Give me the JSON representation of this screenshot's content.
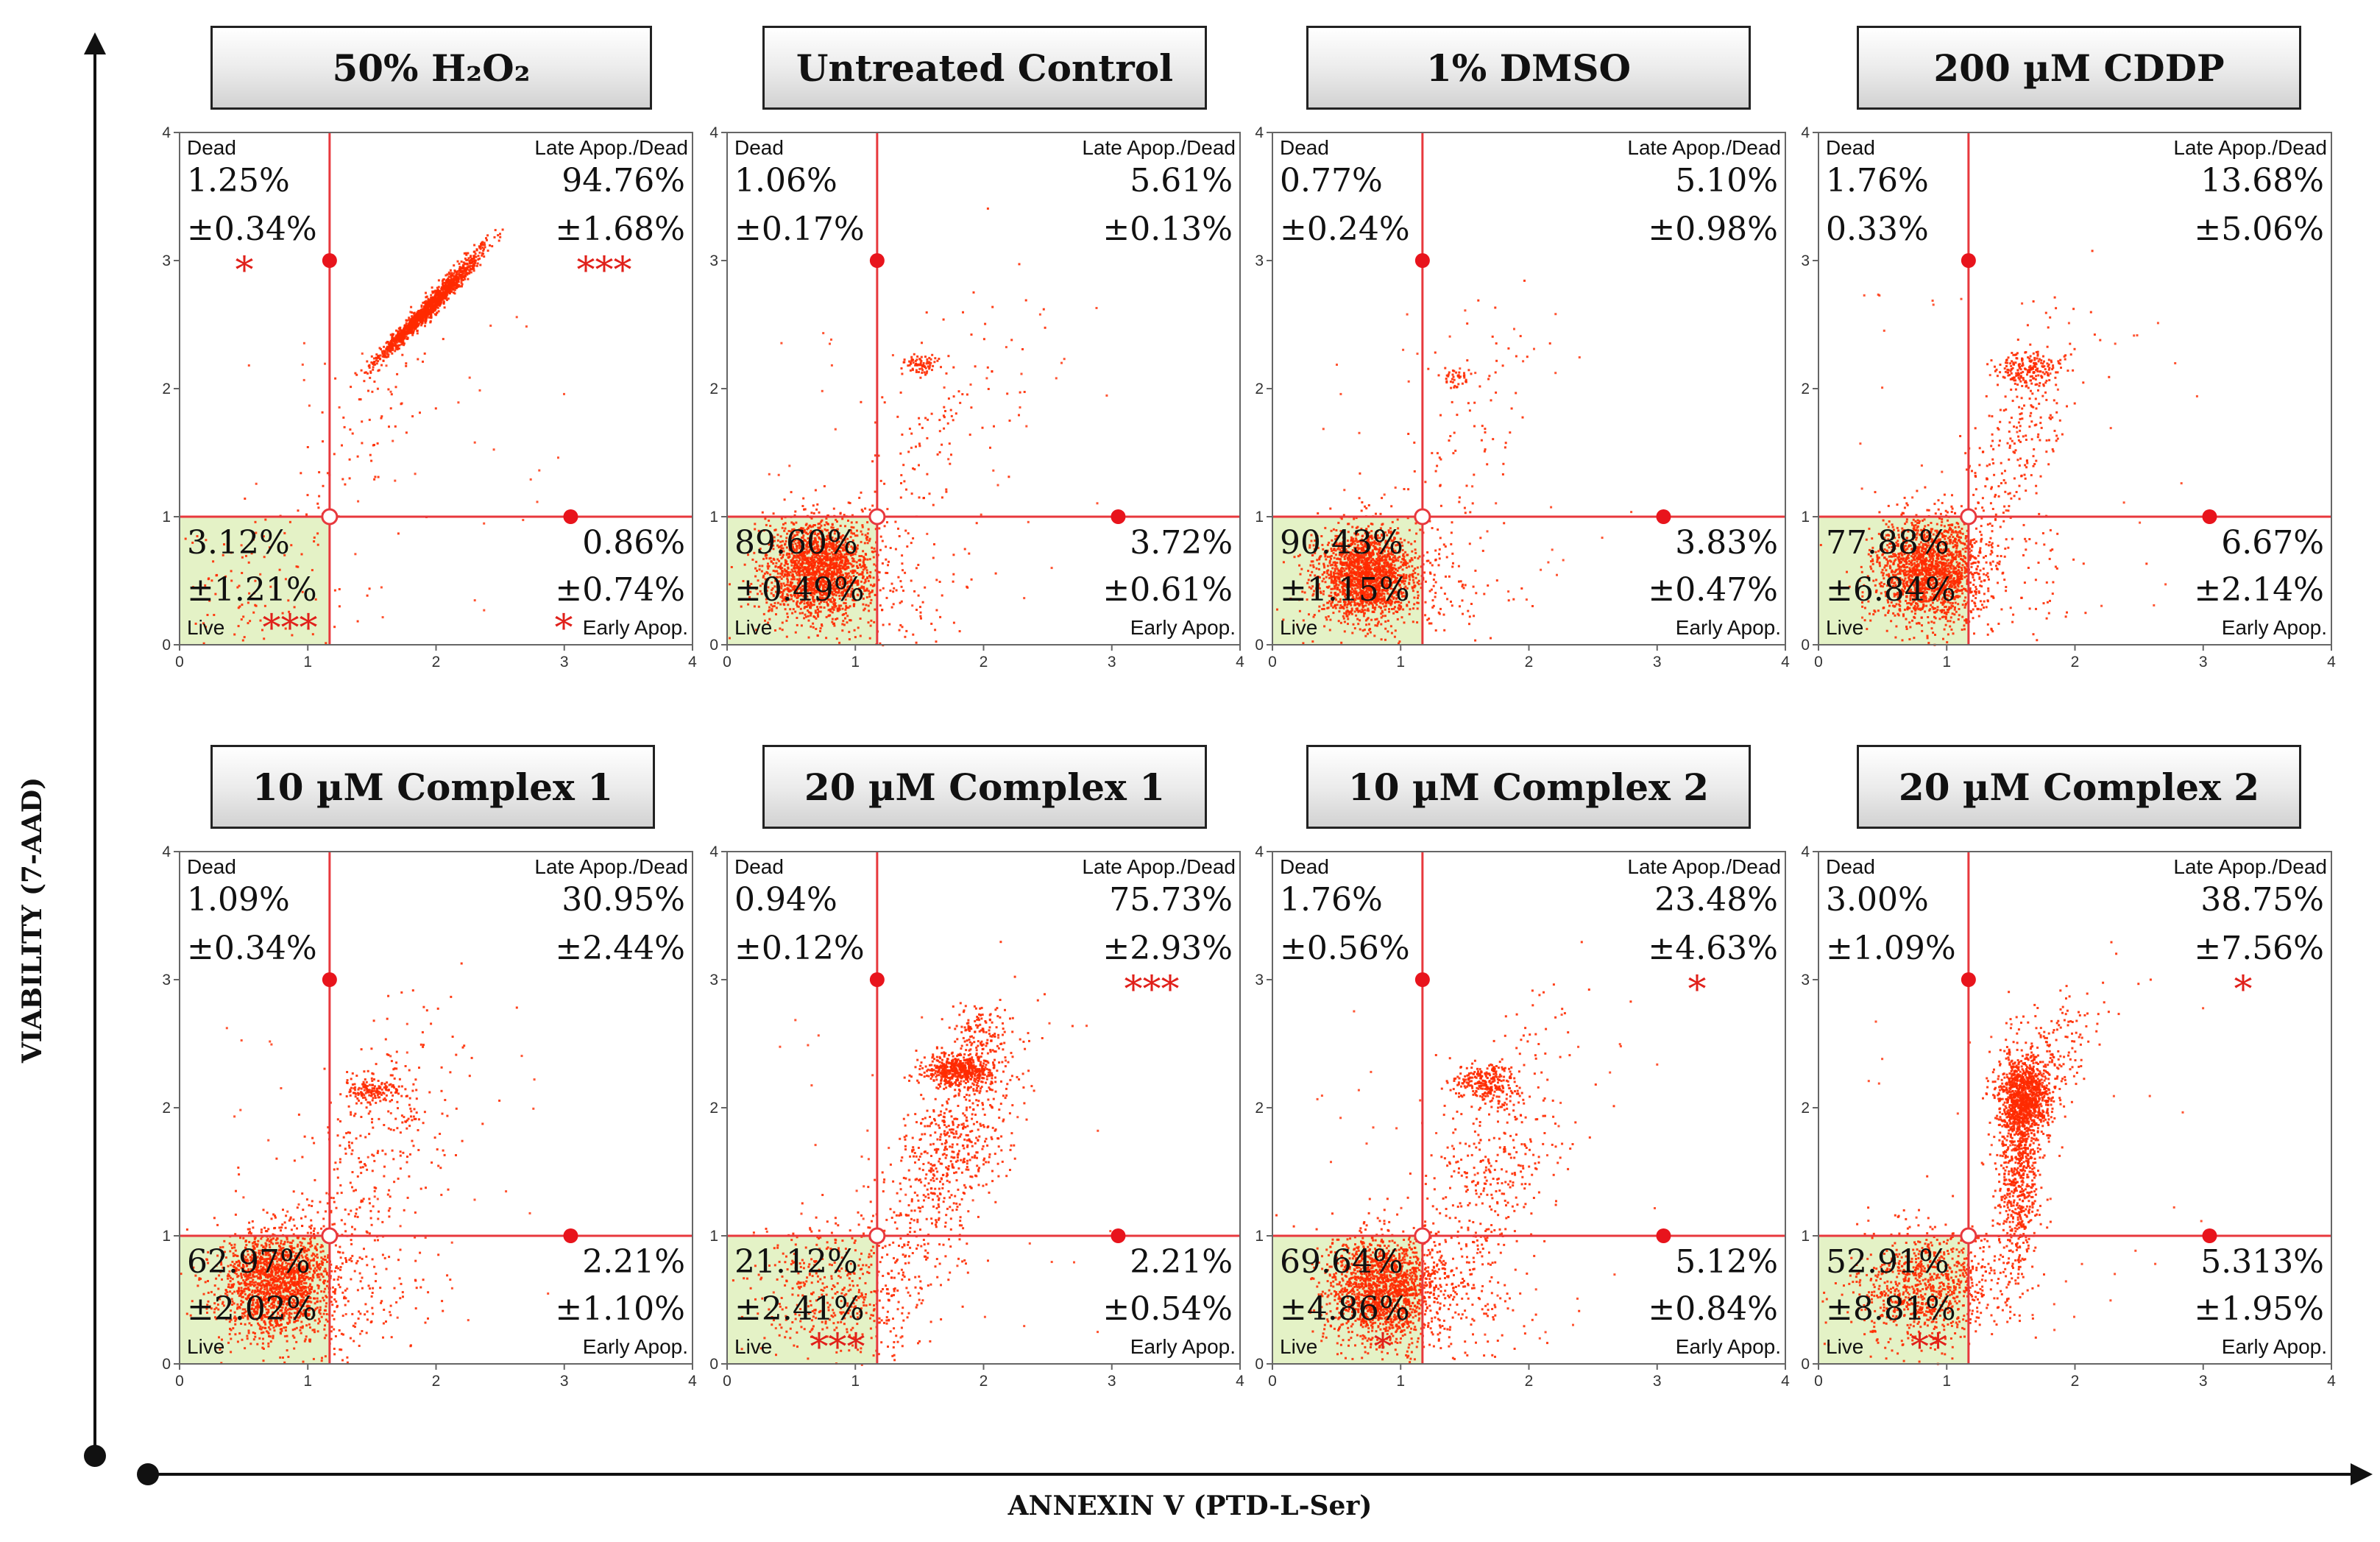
{
  "figure": {
    "ylabel": "VIABILITY (7-AAD)",
    "xlabel": "ANNEXIN V (PTD-L-Ser)",
    "colors": {
      "dots": "#ff2a00",
      "gate_line": "#e8383d",
      "live_fill": "#e4f2c6",
      "asterisk": "#e0201a"
    }
  },
  "chart_data": [
    {
      "type": "scatter",
      "title": "50% H₂O₂",
      "xlim": [
        0,
        4
      ],
      "ylim": [
        0,
        4
      ],
      "x_ticks": [
        "0",
        "1",
        "2",
        "3",
        "4"
      ],
      "y_ticks": [
        "0",
        "1",
        "2",
        "3",
        "4"
      ],
      "gate": {
        "x": 1.17,
        "y": 1.0
      },
      "quadrants": {
        "dead": {
          "label": "Dead",
          "value": "1.25%",
          "sd": "±0.34%",
          "sig": "*"
        },
        "late": {
          "label": "Late Apop./Dead",
          "value": "94.76%",
          "sd": "±1.68%",
          "sig": "***"
        },
        "live": {
          "label": "Live",
          "value": "3.12%",
          "sd": "±1.21%",
          "sig": "***"
        },
        "early": {
          "label": "Early Apop.",
          "value": "0.86%",
          "sd": "±0.74%",
          "sig": "*"
        }
      },
      "clusters": [
        {
          "x": 1.9,
          "y": 2.6,
          "sx": 0.18,
          "sy": 0.18,
          "n": 1300,
          "rho": 0.98
        },
        {
          "x": 2.2,
          "y": 2.95,
          "sx": 0.15,
          "sy": 0.15,
          "n": 200,
          "rho": 0.95
        },
        {
          "x": 0.6,
          "y": 0.45,
          "sx": 0.35,
          "sy": 0.3,
          "n": 110
        },
        {
          "x": 1.4,
          "y": 1.6,
          "sx": 0.3,
          "sy": 0.4,
          "n": 70,
          "rho": 0.8
        }
      ]
    },
    {
      "type": "scatter",
      "title": "Untreated Control",
      "xlim": [
        0,
        4
      ],
      "ylim": [
        0,
        4
      ],
      "x_ticks": [
        "0",
        "1",
        "2",
        "3",
        "4"
      ],
      "y_ticks": [
        "0",
        "1",
        "2",
        "3",
        "4"
      ],
      "gate": {
        "x": 1.17,
        "y": 1.0
      },
      "quadrants": {
        "dead": {
          "label": "Dead",
          "value": "1.06%",
          "sd": "±0.17%",
          "sig": ""
        },
        "late": {
          "label": "Late Apop./Dead",
          "value": "5.61%",
          "sd": "±0.13%",
          "sig": ""
        },
        "live": {
          "label": "Live",
          "value": "89.60%",
          "sd": "±0.49%",
          "sig": ""
        },
        "early": {
          "label": "Early Apop.",
          "value": "3.72%",
          "sd": "±0.61%",
          "sig": ""
        }
      },
      "clusters": [
        {
          "x": 0.7,
          "y": 0.6,
          "sx": 0.2,
          "sy": 0.19,
          "n": 1700
        },
        {
          "x": 1.0,
          "y": 0.45,
          "sx": 0.4,
          "sy": 0.3,
          "n": 220
        },
        {
          "x": 1.5,
          "y": 2.2,
          "sx": 0.07,
          "sy": 0.04,
          "n": 80
        },
        {
          "x": 1.55,
          "y": 1.6,
          "sx": 0.35,
          "sy": 0.55,
          "n": 130,
          "rho": 0.6
        }
      ]
    },
    {
      "type": "scatter",
      "title": "1% DMSO",
      "xlim": [
        0,
        4
      ],
      "ylim": [
        0,
        4
      ],
      "x_ticks": [
        "0",
        "1",
        "2",
        "3",
        "4"
      ],
      "y_ticks": [
        "0",
        "1",
        "2",
        "3",
        "4"
      ],
      "gate": {
        "x": 1.17,
        "y": 1.0
      },
      "quadrants": {
        "dead": {
          "label": "Dead",
          "value": "0.77%",
          "sd": "±0.24%",
          "sig": ""
        },
        "late": {
          "label": "Late Apop./Dead",
          "value": "5.10%",
          "sd": "±0.98%",
          "sig": ""
        },
        "live": {
          "label": "Live",
          "value": "90.43%",
          "sd": "±1.15%",
          "sig": ""
        },
        "early": {
          "label": "Early Apop.",
          "value": "3.83%",
          "sd": "±0.47%",
          "sig": ""
        }
      },
      "clusters": [
        {
          "x": 0.72,
          "y": 0.55,
          "sx": 0.19,
          "sy": 0.18,
          "n": 1700
        },
        {
          "x": 1.0,
          "y": 0.45,
          "sx": 0.4,
          "sy": 0.3,
          "n": 220
        },
        {
          "x": 1.4,
          "y": 2.1,
          "sx": 0.06,
          "sy": 0.04,
          "n": 40
        },
        {
          "x": 1.45,
          "y": 1.5,
          "sx": 0.3,
          "sy": 0.55,
          "n": 90,
          "rho": 0.6
        }
      ]
    },
    {
      "type": "scatter",
      "title": "200 µM CDDP",
      "xlim": [
        0,
        4
      ],
      "ylim": [
        0,
        4
      ],
      "x_ticks": [
        "0",
        "1",
        "2",
        "3",
        "4"
      ],
      "y_ticks": [
        "0",
        "1",
        "2",
        "3",
        "4"
      ],
      "gate": {
        "x": 1.17,
        "y": 1.0
      },
      "quadrants": {
        "dead": {
          "label": "Dead",
          "value": "1.76%",
          "sd": "0.33%",
          "sig": ""
        },
        "late": {
          "label": "Late Apop./Dead",
          "value": "13.68%",
          "sd": "±5.06%",
          "sig": ""
        },
        "live": {
          "label": "Live",
          "value": "77.88%",
          "sd": "±6.84%",
          "sig": ""
        },
        "early": {
          "label": "Early Apop.",
          "value": "6.67%",
          "sd": "±2.14%",
          "sig": ""
        }
      },
      "clusters": [
        {
          "x": 0.85,
          "y": 0.6,
          "sx": 0.2,
          "sy": 0.2,
          "n": 1600
        },
        {
          "x": 1.15,
          "y": 0.55,
          "sx": 0.4,
          "sy": 0.3,
          "n": 250
        },
        {
          "x": 1.6,
          "y": 2.15,
          "sx": 0.12,
          "sy": 0.07,
          "n": 180
        },
        {
          "x": 1.55,
          "y": 1.6,
          "sx": 0.25,
          "sy": 0.5,
          "n": 250,
          "rho": 0.7
        }
      ]
    },
    {
      "type": "scatter",
      "title": "10 µM Complex 1",
      "xlim": [
        0,
        4
      ],
      "ylim": [
        0,
        4
      ],
      "x_ticks": [
        "0",
        "1",
        "2",
        "3",
        "4"
      ],
      "y_ticks": [
        "0",
        "1",
        "2",
        "3",
        "4"
      ],
      "gate": {
        "x": 1.17,
        "y": 1.0
      },
      "quadrants": {
        "dead": {
          "label": "Dead",
          "value": "1.09%",
          "sd": "±0.34%",
          "sig": ""
        },
        "late": {
          "label": "Late Apop./Dead",
          "value": "30.95%",
          "sd": "±2.44%",
          "sig": ""
        },
        "live": {
          "label": "Live",
          "value": "62.97%",
          "sd": "±2.02%",
          "sig": ""
        },
        "early": {
          "label": "Early Apop.",
          "value": "2.21%",
          "sd": "±1.10%",
          "sig": ""
        }
      },
      "clusters": [
        {
          "x": 0.75,
          "y": 0.65,
          "sx": 0.22,
          "sy": 0.2,
          "n": 1600
        },
        {
          "x": 1.05,
          "y": 0.55,
          "sx": 0.45,
          "sy": 0.3,
          "n": 300
        },
        {
          "x": 1.5,
          "y": 2.15,
          "sx": 0.1,
          "sy": 0.06,
          "n": 160
        },
        {
          "x": 1.55,
          "y": 1.7,
          "sx": 0.35,
          "sy": 0.55,
          "n": 300,
          "rho": 0.6
        }
      ]
    },
    {
      "type": "scatter",
      "title": "20 µM Complex 1",
      "xlim": [
        0,
        4
      ],
      "ylim": [
        0,
        4
      ],
      "x_ticks": [
        "0",
        "1",
        "2",
        "3",
        "4"
      ],
      "y_ticks": [
        "0",
        "1",
        "2",
        "3",
        "4"
      ],
      "gate": {
        "x": 1.17,
        "y": 1.0
      },
      "quadrants": {
        "dead": {
          "label": "Dead",
          "value": "0.94%",
          "sd": "±0.12%",
          "sig": ""
        },
        "late": {
          "label": "Late Apop./Dead",
          "value": "75.73%",
          "sd": "±2.93%",
          "sig": "***"
        },
        "live": {
          "label": "Live",
          "value": "21.12%",
          "sd": "±2.41%",
          "sig": "***"
        },
        "early": {
          "label": "Early Apop.",
          "value": "2.21%",
          "sd": "±0.54%",
          "sig": ""
        }
      },
      "clusters": [
        {
          "x": 1.8,
          "y": 2.3,
          "sx": 0.13,
          "sy": 0.06,
          "n": 500
        },
        {
          "x": 1.75,
          "y": 1.7,
          "sx": 0.25,
          "sy": 0.5,
          "n": 700,
          "rho": 0.6
        },
        {
          "x": 0.9,
          "y": 0.55,
          "sx": 0.35,
          "sy": 0.3,
          "n": 500
        },
        {
          "x": 1.95,
          "y": 2.6,
          "sx": 0.1,
          "sy": 0.1,
          "n": 100
        }
      ]
    },
    {
      "type": "scatter",
      "title": "10 µM Complex 2",
      "xlim": [
        0,
        4
      ],
      "ylim": [
        0,
        4
      ],
      "x_ticks": [
        "0",
        "1",
        "2",
        "3",
        "4"
      ],
      "y_ticks": [
        "0",
        "1",
        "2",
        "3",
        "4"
      ],
      "gate": {
        "x": 1.17,
        "y": 1.0
      },
      "quadrants": {
        "dead": {
          "label": "Dead",
          "value": "1.76%",
          "sd": "±0.56%",
          "sig": ""
        },
        "late": {
          "label": "Late Apop./Dead",
          "value": "23.48%",
          "sd": "±4.63%",
          "sig": "*"
        },
        "live": {
          "label": "Live",
          "value": "69.64%",
          "sd": "±4.86%",
          "sig": "*"
        },
        "early": {
          "label": "Early Apop.",
          "value": "5.12%",
          "sd": "±0.84%",
          "sig": ""
        }
      },
      "clusters": [
        {
          "x": 0.85,
          "y": 0.6,
          "sx": 0.22,
          "sy": 0.2,
          "n": 1500
        },
        {
          "x": 1.15,
          "y": 0.55,
          "sx": 0.45,
          "sy": 0.3,
          "n": 300
        },
        {
          "x": 1.65,
          "y": 2.2,
          "sx": 0.12,
          "sy": 0.07,
          "n": 250
        },
        {
          "x": 1.7,
          "y": 1.55,
          "sx": 0.3,
          "sy": 0.55,
          "n": 400,
          "rho": 0.55
        }
      ]
    },
    {
      "type": "scatter",
      "title": "20 µM Complex 2",
      "xlim": [
        0,
        4
      ],
      "ylim": [
        0,
        4
      ],
      "x_ticks": [
        "0",
        "1",
        "2",
        "3",
        "4"
      ],
      "y_ticks": [
        "0",
        "1",
        "2",
        "3",
        "4"
      ],
      "gate": {
        "x": 1.17,
        "y": 1.0
      },
      "quadrants": {
        "dead": {
          "label": "Dead",
          "value": "3.00%",
          "sd": "±1.09%",
          "sig": ""
        },
        "late": {
          "label": "Late Apop./Dead",
          "value": "38.75%",
          "sd": "±7.56%",
          "sig": "*"
        },
        "live": {
          "label": "Live",
          "value": "52.91%",
          "sd": "±8.81%",
          "sig": "**"
        },
        "early": {
          "label": "Early Apop.",
          "value": "5.313%",
          "sd": "±1.95%",
          "sig": ""
        }
      },
      "clusters": [
        {
          "x": 1.6,
          "y": 2.1,
          "sx": 0.1,
          "sy": 0.15,
          "n": 900
        },
        {
          "x": 1.55,
          "y": 1.5,
          "sx": 0.08,
          "sy": 0.4,
          "n": 700
        },
        {
          "x": 0.85,
          "y": 0.6,
          "sx": 0.3,
          "sy": 0.22,
          "n": 900
        },
        {
          "x": 1.75,
          "y": 2.35,
          "sx": 0.2,
          "sy": 0.3,
          "n": 250,
          "rho": 0.6
        }
      ]
    }
  ]
}
